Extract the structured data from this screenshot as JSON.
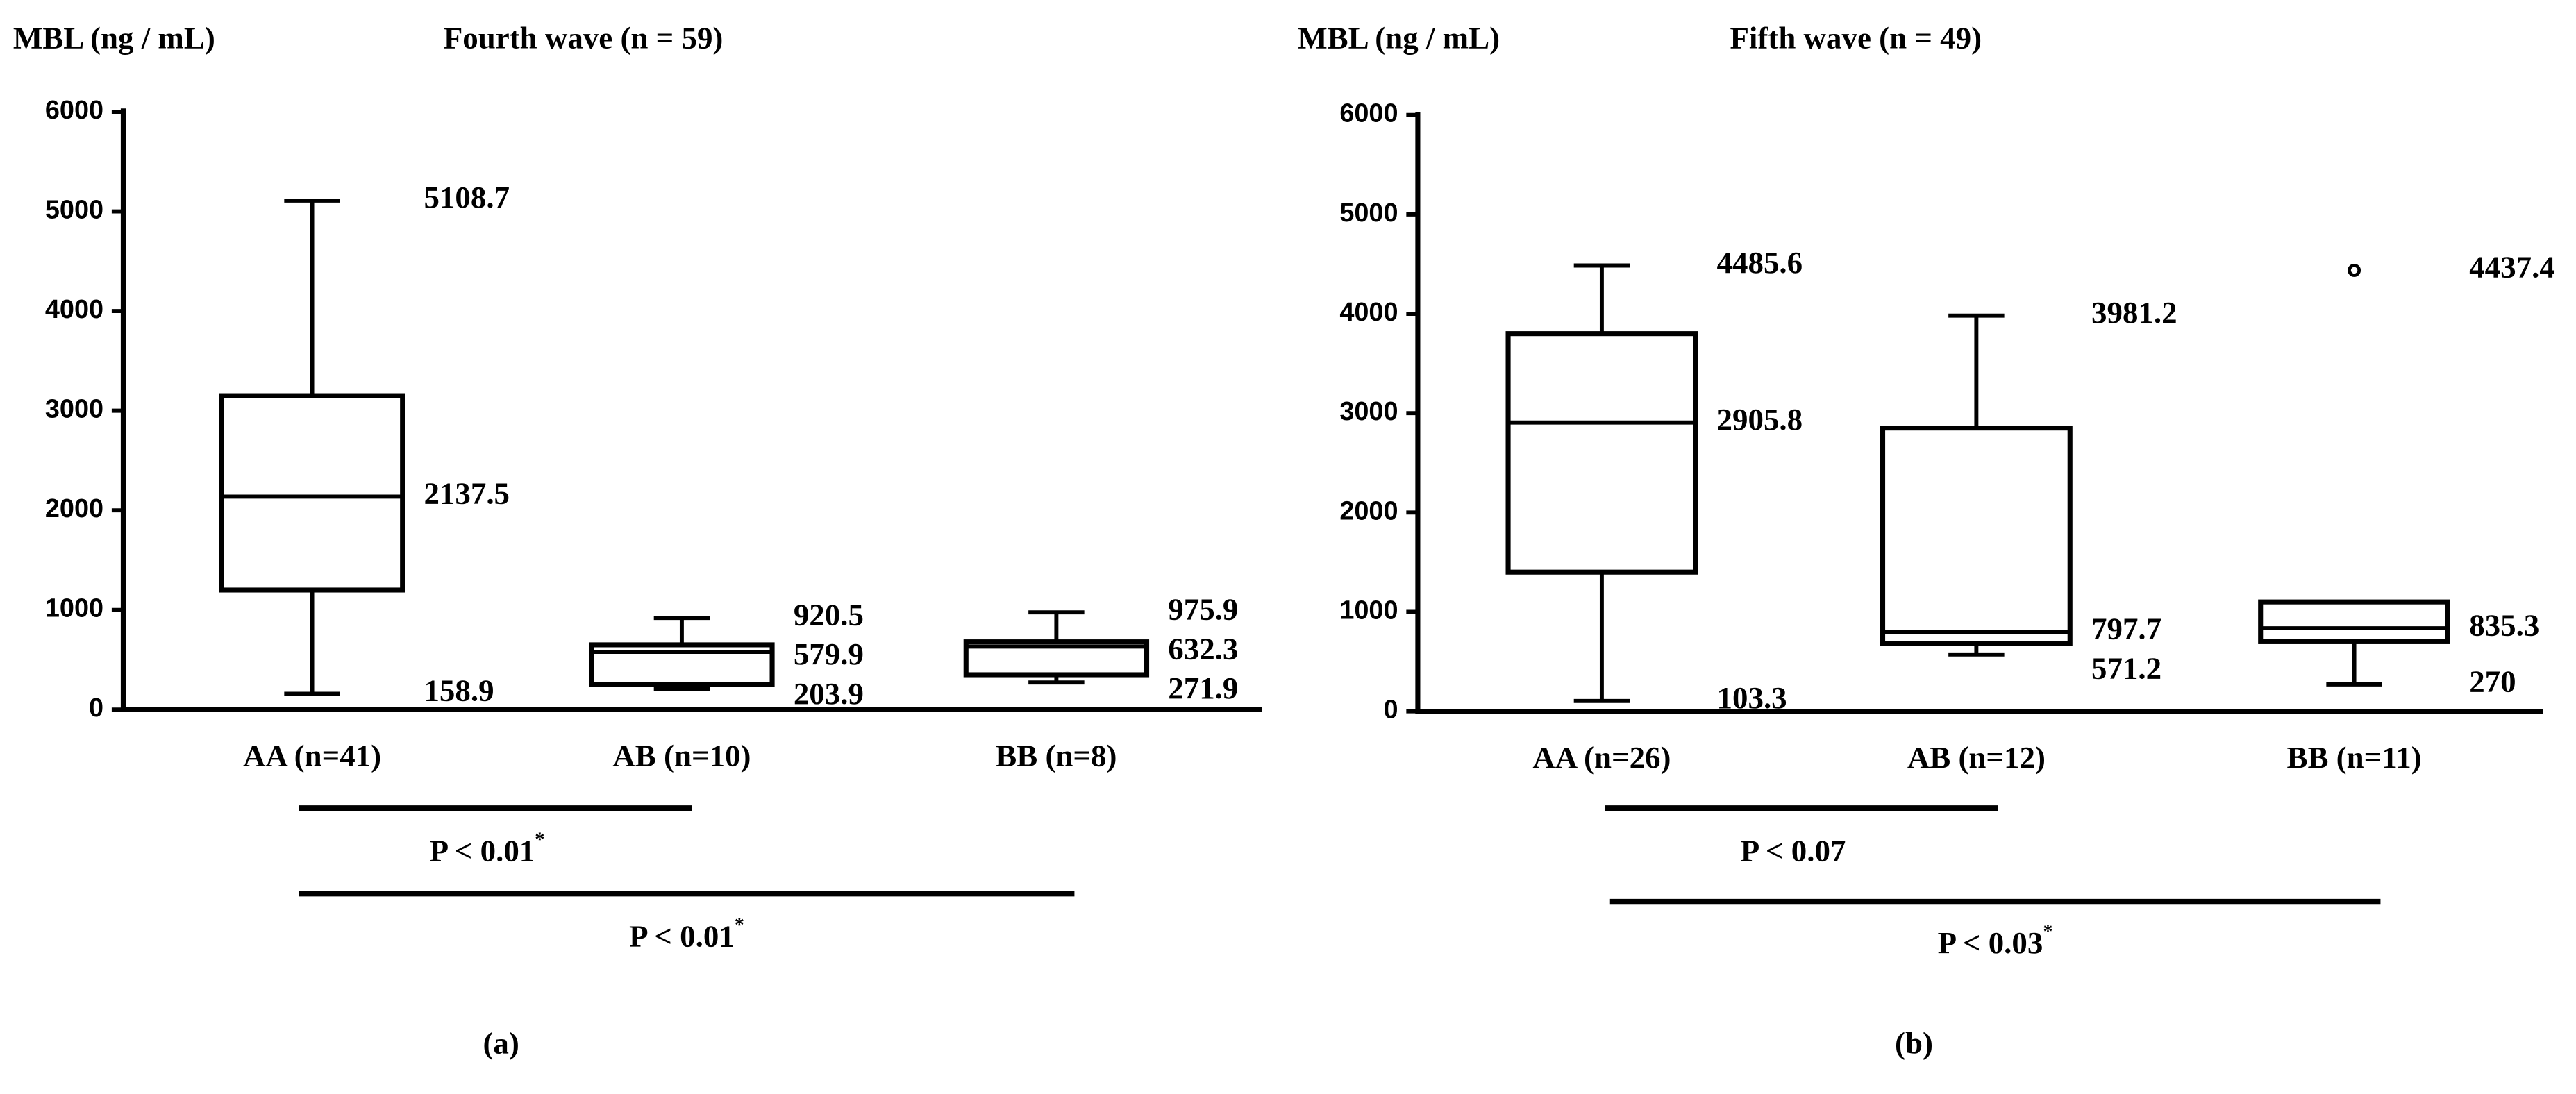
{
  "chart_data": [
    {
      "type": "box",
      "panel": "(a)",
      "y_label": "MBL (ng / mL)",
      "title": "Fourth wave (n = 59)",
      "categories": [
        "AA (n=41)",
        "AB (n=10)",
        "BB (n=8)"
      ],
      "boxes": [
        {
          "min": 158.9,
          "q1": 1200,
          "median": 2137.5,
          "q3": 3150,
          "max": 5108.7
        },
        {
          "min": 203.9,
          "q1": 250,
          "median": 579.9,
          "q3": 650,
          "max": 920.5
        },
        {
          "min": 271.9,
          "q1": 350,
          "median": 632.3,
          "q3": 680,
          "max": 975.9
        }
      ],
      "ylim": [
        0,
        6000
      ],
      "yticks": [
        0,
        1000,
        2000,
        3000,
        4000,
        5000,
        6000
      ],
      "comparisons": [
        {
          "text": "P < 0.01",
          "sup": "*"
        },
        {
          "text": "P < 0.01",
          "sup": "*"
        }
      ]
    },
    {
      "type": "box",
      "panel": "(b)",
      "y_label": "MBL (ng / mL)",
      "title": "Fifth wave (n = 49)",
      "categories": [
        "AA (n=26)",
        "AB (n=12)",
        "BB (n=11)"
      ],
      "boxes": [
        {
          "min": 103.3,
          "q1": 1400,
          "median": 2905.8,
          "q3": 3800,
          "max": 4485.6
        },
        {
          "min": 571.2,
          "q1": 680,
          "median": 797.7,
          "q3": 2850,
          "max": 3981.2
        },
        {
          "min": 270,
          "q1": 700,
          "median": 835.3,
          "q3": 1100,
          "max": 1100,
          "outliers": [
            4437.4
          ]
        }
      ],
      "ylim": [
        0,
        6000
      ],
      "yticks": [
        0,
        1000,
        2000,
        3000,
        4000,
        5000,
        6000
      ],
      "comparisons": [
        {
          "text": "P < 0.07"
        },
        {
          "text": "P < 0.03",
          "sup": "*"
        }
      ]
    }
  ]
}
